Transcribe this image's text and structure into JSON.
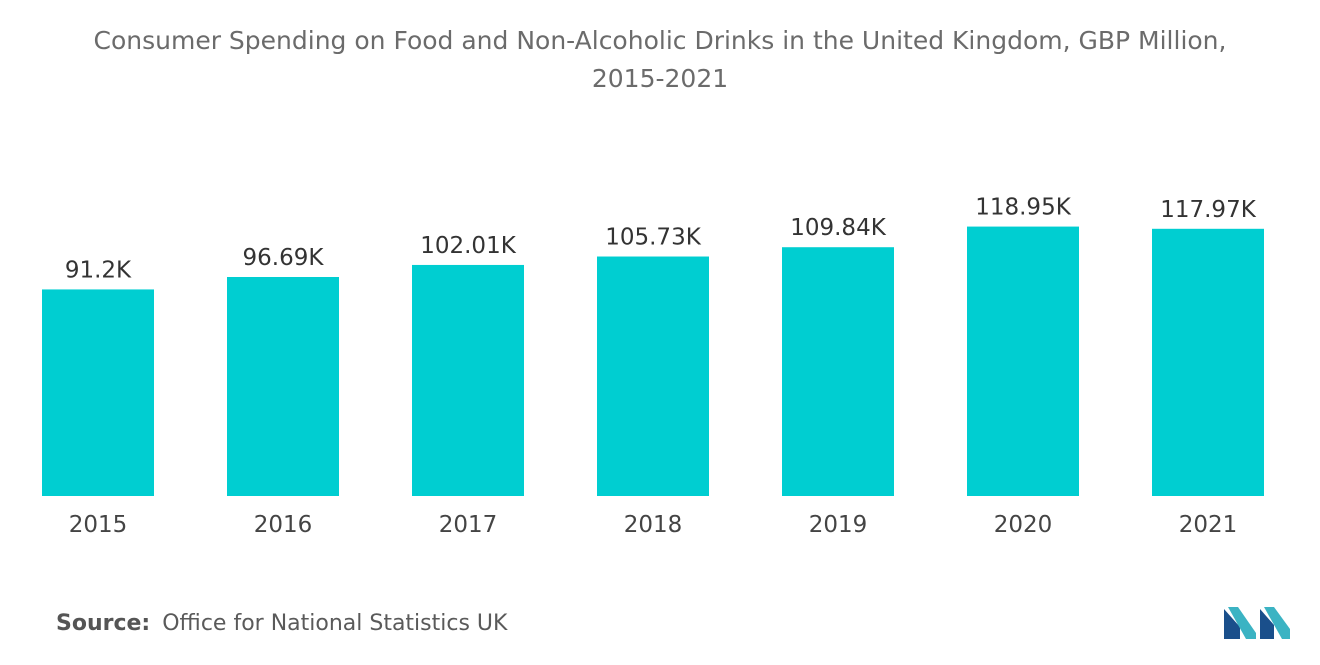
{
  "chart_data": {
    "type": "bar",
    "title": "Consumer Spending on Food and Non-Alcoholic Drinks in the United Kingdom, GBP Million,",
    "subtitle": "2015-2021",
    "categories": [
      "2015",
      "2016",
      "2017",
      "2018",
      "2019",
      "2020",
      "2021"
    ],
    "values": [
      91.2,
      96.69,
      102.01,
      105.73,
      109.84,
      118.95,
      117.97
    ],
    "value_labels": [
      "91.2K",
      "96.69K",
      "102.01K",
      "105.73K",
      "109.84K",
      "118.95K",
      "117.97K"
    ],
    "ylim": [
      0,
      130
    ],
    "grid": false,
    "bar_color": "#00ced1"
  },
  "source": {
    "label": "Source:",
    "text": "Office for National Statistics UK"
  },
  "logo": {
    "icon": "mordor-intelligence-logo-icon",
    "colors": [
      "#1a4f8b",
      "#3bb3c3"
    ]
  }
}
